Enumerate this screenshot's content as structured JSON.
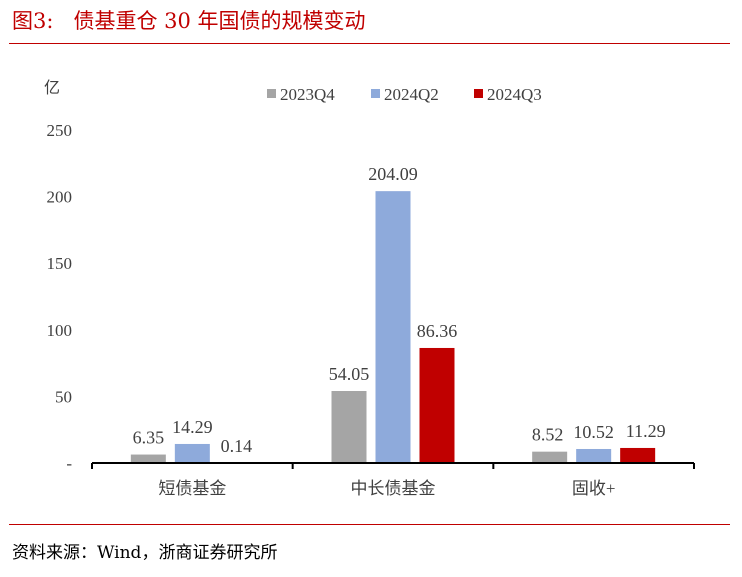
{
  "title": "图3:   债基重仓 30 年国债的规模变动",
  "source": "资料来源：Wind，浙商证券研究所",
  "chart_data": {
    "type": "bar",
    "ylabel": "亿",
    "ylim": [
      0,
      250
    ],
    "yticks": [
      0,
      50,
      100,
      150,
      200,
      250
    ],
    "ytick_labels": [
      "-",
      "50",
      "100",
      "150",
      "200",
      "250"
    ],
    "grid": false,
    "legend_position": "top",
    "categories": [
      "短债基金",
      "中长债基金",
      "固收+"
    ],
    "series": [
      {
        "name": "2023Q4",
        "color": "#a5a5a5",
        "values": [
          6.35,
          54.05,
          8.52
        ]
      },
      {
        "name": "2024Q2",
        "color": "#8eaadb",
        "values": [
          14.29,
          204.09,
          10.52
        ]
      },
      {
        "name": "2024Q3",
        "color": "#c00000",
        "values": [
          0.14,
          86.36,
          11.29
        ]
      }
    ]
  }
}
